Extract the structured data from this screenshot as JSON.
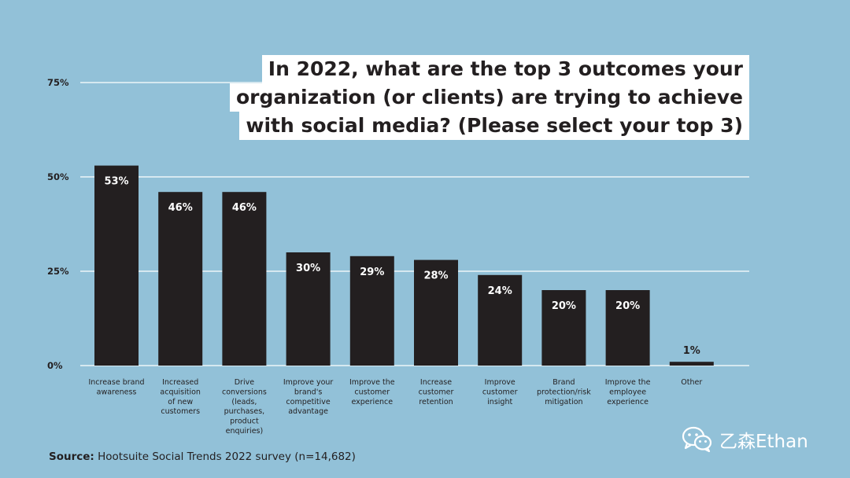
{
  "title_lines": [
    "In 2022, what are the top 3 outcomes your",
    "organization (or clients) are trying to achieve",
    "with social media? (Please select your top 3)"
  ],
  "source": {
    "label": "Source:",
    "text": "Hootsuite Social Trends 2022 survey (n=14,682)"
  },
  "watermark": {
    "text": "乙森Ethan",
    "icon": "wechat-icon"
  },
  "colors": {
    "background": "#92c1d8",
    "bar": "#231f20",
    "grid": "#ffffff",
    "title_bg": "#ffffff",
    "text": "#231f20"
  },
  "chart_data": {
    "type": "bar",
    "title": "In 2022, what are the top 3 outcomes your organization (or clients) are trying to achieve with social media? (Please select your top 3)",
    "categories": [
      [
        "Increase brand",
        "awareness"
      ],
      [
        "Increased",
        "acquisition",
        "of new",
        "customers"
      ],
      [
        "Drive",
        "conversions",
        "(leads,",
        "purchases,",
        "product",
        "enquiries)"
      ],
      [
        "Improve your",
        "brand's",
        "competitive",
        "advantage"
      ],
      [
        "Improve the",
        "customer",
        "experience"
      ],
      [
        "Increase",
        "customer",
        "retention"
      ],
      [
        "Improve",
        "customer",
        "insight"
      ],
      [
        "Brand",
        "protection/risk",
        "mitigation"
      ],
      [
        "Improve the",
        "employee",
        "experience"
      ],
      [
        "Other"
      ]
    ],
    "values": [
      53,
      46,
      46,
      30,
      29,
      28,
      24,
      20,
      20,
      1
    ],
    "value_labels": [
      "53%",
      "46%",
      "46%",
      "30%",
      "29%",
      "28%",
      "24%",
      "20%",
      "20%",
      "1%"
    ],
    "yticks": [
      0,
      25,
      50,
      75
    ],
    "ytick_labels": [
      "0%",
      "25%",
      "50%",
      "75%"
    ],
    "ylim": [
      0,
      75
    ],
    "grid": true,
    "xlabel": "",
    "ylabel": ""
  }
}
